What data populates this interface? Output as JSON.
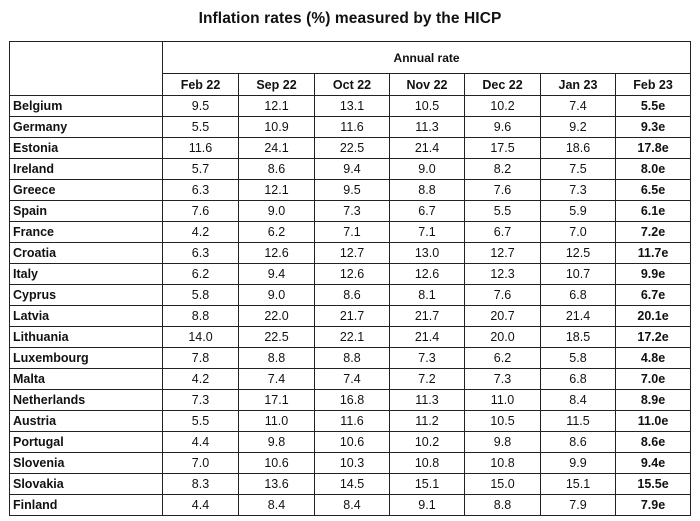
{
  "title": "Inflation rates (%) measured by the HICP",
  "table": {
    "group_header": "Annual rate",
    "columns": [
      "Feb 22",
      "Sep 22",
      "Oct 22",
      "Nov 22",
      "Dec 22",
      "Jan 23",
      "Feb 23"
    ],
    "rows": [
      {
        "country": "Belgium",
        "values": [
          "9.5",
          "12.1",
          "13.1",
          "10.5",
          "10.2",
          "7.4",
          "5.5e"
        ]
      },
      {
        "country": "Germany",
        "values": [
          "5.5",
          "10.9",
          "11.6",
          "11.3",
          "9.6",
          "9.2",
          "9.3e"
        ]
      },
      {
        "country": "Estonia",
        "values": [
          "11.6",
          "24.1",
          "22.5",
          "21.4",
          "17.5",
          "18.6",
          "17.8e"
        ]
      },
      {
        "country": "Ireland",
        "values": [
          "5.7",
          "8.6",
          "9.4",
          "9.0",
          "8.2",
          "7.5",
          "8.0e"
        ]
      },
      {
        "country": "Greece",
        "values": [
          "6.3",
          "12.1",
          "9.5",
          "8.8",
          "7.6",
          "7.3",
          "6.5e"
        ]
      },
      {
        "country": "Spain",
        "values": [
          "7.6",
          "9.0",
          "7.3",
          "6.7",
          "5.5",
          "5.9",
          "6.1e"
        ]
      },
      {
        "country": "France",
        "values": [
          "4.2",
          "6.2",
          "7.1",
          "7.1",
          "6.7",
          "7.0",
          "7.2e"
        ]
      },
      {
        "country": "Croatia",
        "values": [
          "6.3",
          "12.6",
          "12.7",
          "13.0",
          "12.7",
          "12.5",
          "11.7e"
        ]
      },
      {
        "country": "Italy",
        "values": [
          "6.2",
          "9.4",
          "12.6",
          "12.6",
          "12.3",
          "10.7",
          "9.9e"
        ]
      },
      {
        "country": "Cyprus",
        "values": [
          "5.8",
          "9.0",
          "8.6",
          "8.1",
          "7.6",
          "6.8",
          "6.7e"
        ]
      },
      {
        "country": "Latvia",
        "values": [
          "8.8",
          "22.0",
          "21.7",
          "21.7",
          "20.7",
          "21.4",
          "20.1e"
        ]
      },
      {
        "country": "Lithuania",
        "values": [
          "14.0",
          "22.5",
          "22.1",
          "21.4",
          "20.0",
          "18.5",
          "17.2e"
        ]
      },
      {
        "country": "Luxembourg",
        "values": [
          "7.8",
          "8.8",
          "8.8",
          "7.3",
          "6.2",
          "5.8",
          "4.8e"
        ]
      },
      {
        "country": "Malta",
        "values": [
          "4.2",
          "7.4",
          "7.4",
          "7.2",
          "7.3",
          "6.8",
          "7.0e"
        ]
      },
      {
        "country": "Netherlands",
        "values": [
          "7.3",
          "17.1",
          "16.8",
          "11.3",
          "11.0",
          "8.4",
          "8.9e"
        ]
      },
      {
        "country": "Austria",
        "values": [
          "5.5",
          "11.0",
          "11.6",
          "11.2",
          "10.5",
          "11.5",
          "11.0e"
        ]
      },
      {
        "country": "Portugal",
        "values": [
          "4.4",
          "9.8",
          "10.6",
          "10.2",
          "9.8",
          "8.6",
          "8.6e"
        ]
      },
      {
        "country": "Slovenia",
        "values": [
          "7.0",
          "10.6",
          "10.3",
          "10.8",
          "10.8",
          "9.9",
          "9.4e"
        ]
      },
      {
        "country": "Slovakia",
        "values": [
          "8.3",
          "13.6",
          "14.5",
          "15.1",
          "15.0",
          "15.1",
          "15.5e"
        ]
      },
      {
        "country": "Finland",
        "values": [
          "4.4",
          "8.4",
          "8.4",
          "9.1",
          "8.8",
          "7.9",
          "7.9e"
        ]
      }
    ]
  }
}
